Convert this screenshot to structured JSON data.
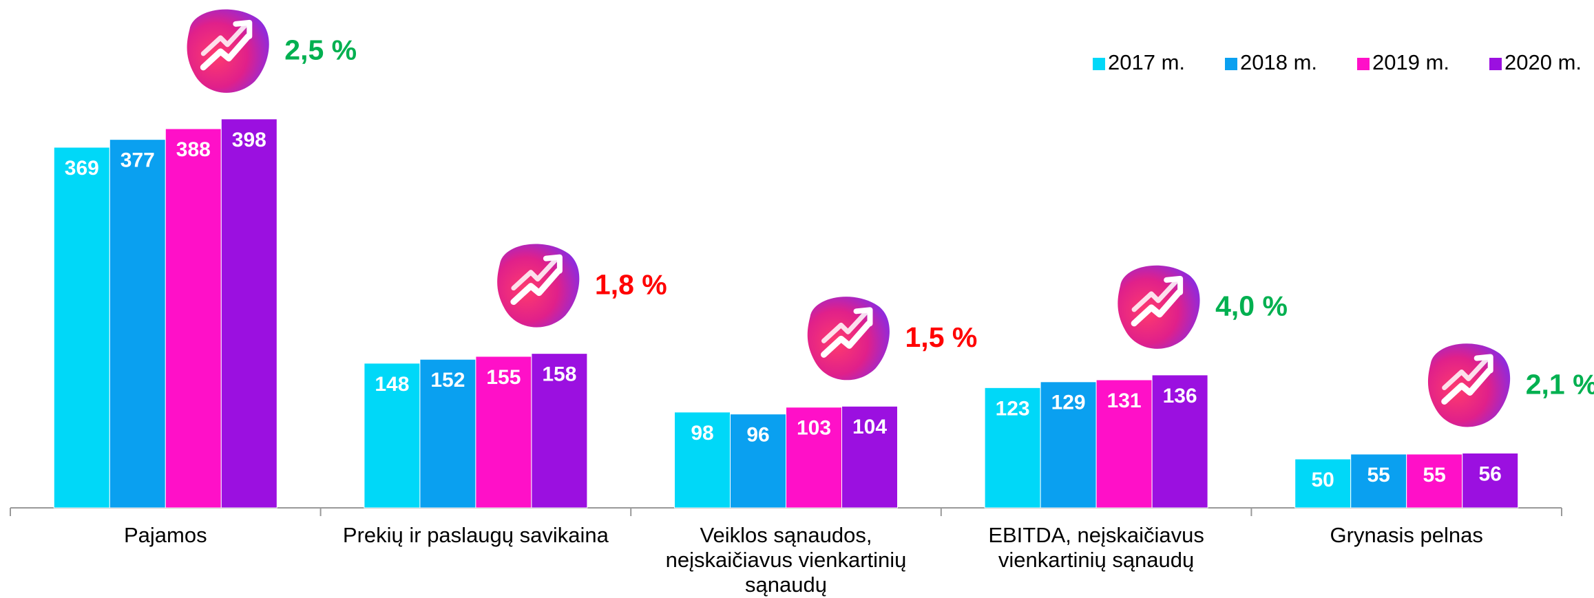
{
  "chart_data": {
    "type": "bar",
    "categories": [
      "Pajamos",
      "Prekių ir paslaugų savikaina",
      "Veiklos sąnaudos,\nneįskaičiavus vienkartinių\nsąnaudų",
      "EBITDA, neįskaičiavus\nvienkartinių sąnaudų",
      "Grynasis pelnas"
    ],
    "series": [
      {
        "name": "2017 m.",
        "color": "#00d8f8",
        "values": [
          369,
          148,
          98,
          123,
          50
        ]
      },
      {
        "name": "2018 m.",
        "color": "#0aa0f0",
        "values": [
          377,
          152,
          96,
          129,
          55
        ]
      },
      {
        "name": "2019 m.",
        "color": "#ff10c8",
        "values": [
          388,
          155,
          103,
          131,
          55
        ]
      },
      {
        "name": "2020 m.",
        "color": "#9b10e0",
        "values": [
          398,
          158,
          104,
          136,
          56
        ]
      }
    ],
    "annotations": [
      {
        "label": "2,5 %",
        "color": "#00b050"
      },
      {
        "label": "1,8 %",
        "color": "#ff0000"
      },
      {
        "label": "1,5 %",
        "color": "#ff0000"
      },
      {
        "label": "4,0 %",
        "color": "#00b050"
      },
      {
        "label": "2,1 %",
        "color": "#00b050"
      }
    ],
    "legend": "top-right"
  }
}
